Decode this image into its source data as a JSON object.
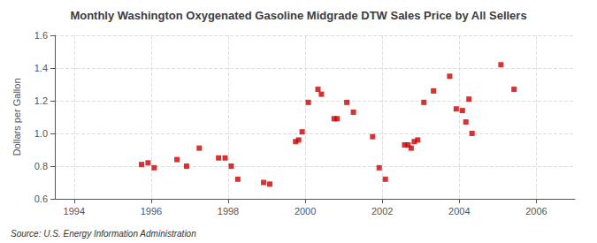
{
  "chart_data": {
    "type": "scatter",
    "title": "Monthly Washington Oxygenated Gasoline Midgrade DTW Sales Price by All Sellers",
    "y_label": "Dollars per Gallon",
    "annotations": [
      "Source: U.S. Energy Information Administration"
    ],
    "color": "#cc0000",
    "marker": "square",
    "grid": true,
    "xlim": [
      1993.5,
      2007.0
    ],
    "ylim": [
      0.6,
      1.6
    ],
    "xticks": [
      1994,
      1996,
      1998,
      2000,
      2002,
      2004,
      2006
    ],
    "yticks": [
      0.6,
      0.8,
      {
        "value": 1.0,
        "label": "1.0"
      },
      1.2,
      1.4,
      1.6
    ],
    "x": [
      1995.75,
      1995.92,
      1996.08,
      1996.67,
      1996.92,
      1997.25,
      1997.75,
      1997.92,
      1998.08,
      1998.25,
      1998.92,
      1999.08,
      1999.75,
      1999.83,
      1999.92,
      2000.08,
      2000.33,
      2000.42,
      2000.75,
      2000.83,
      2001.08,
      2001.25,
      2001.75,
      2001.92,
      2002.08,
      2002.58,
      2002.67,
      2002.75,
      2002.83,
      2002.92,
      2003.08,
      2003.33,
      2003.75,
      2003.92,
      2004.08,
      2004.17,
      2004.25,
      2004.33,
      2005.08,
      2005.42
    ],
    "values": [
      0.81,
      0.82,
      0.79,
      0.84,
      0.8,
      0.91,
      0.85,
      0.85,
      0.8,
      0.72,
      0.7,
      0.69,
      0.95,
      0.96,
      1.01,
      1.19,
      1.27,
      1.24,
      1.09,
      1.09,
      1.19,
      1.13,
      0.98,
      0.79,
      0.72,
      0.93,
      0.93,
      0.91,
      0.95,
      0.96,
      1.19,
      1.26,
      1.35,
      1.15,
      1.14,
      1.07,
      1.21,
      1.0,
      1.42,
      1.27
    ]
  }
}
